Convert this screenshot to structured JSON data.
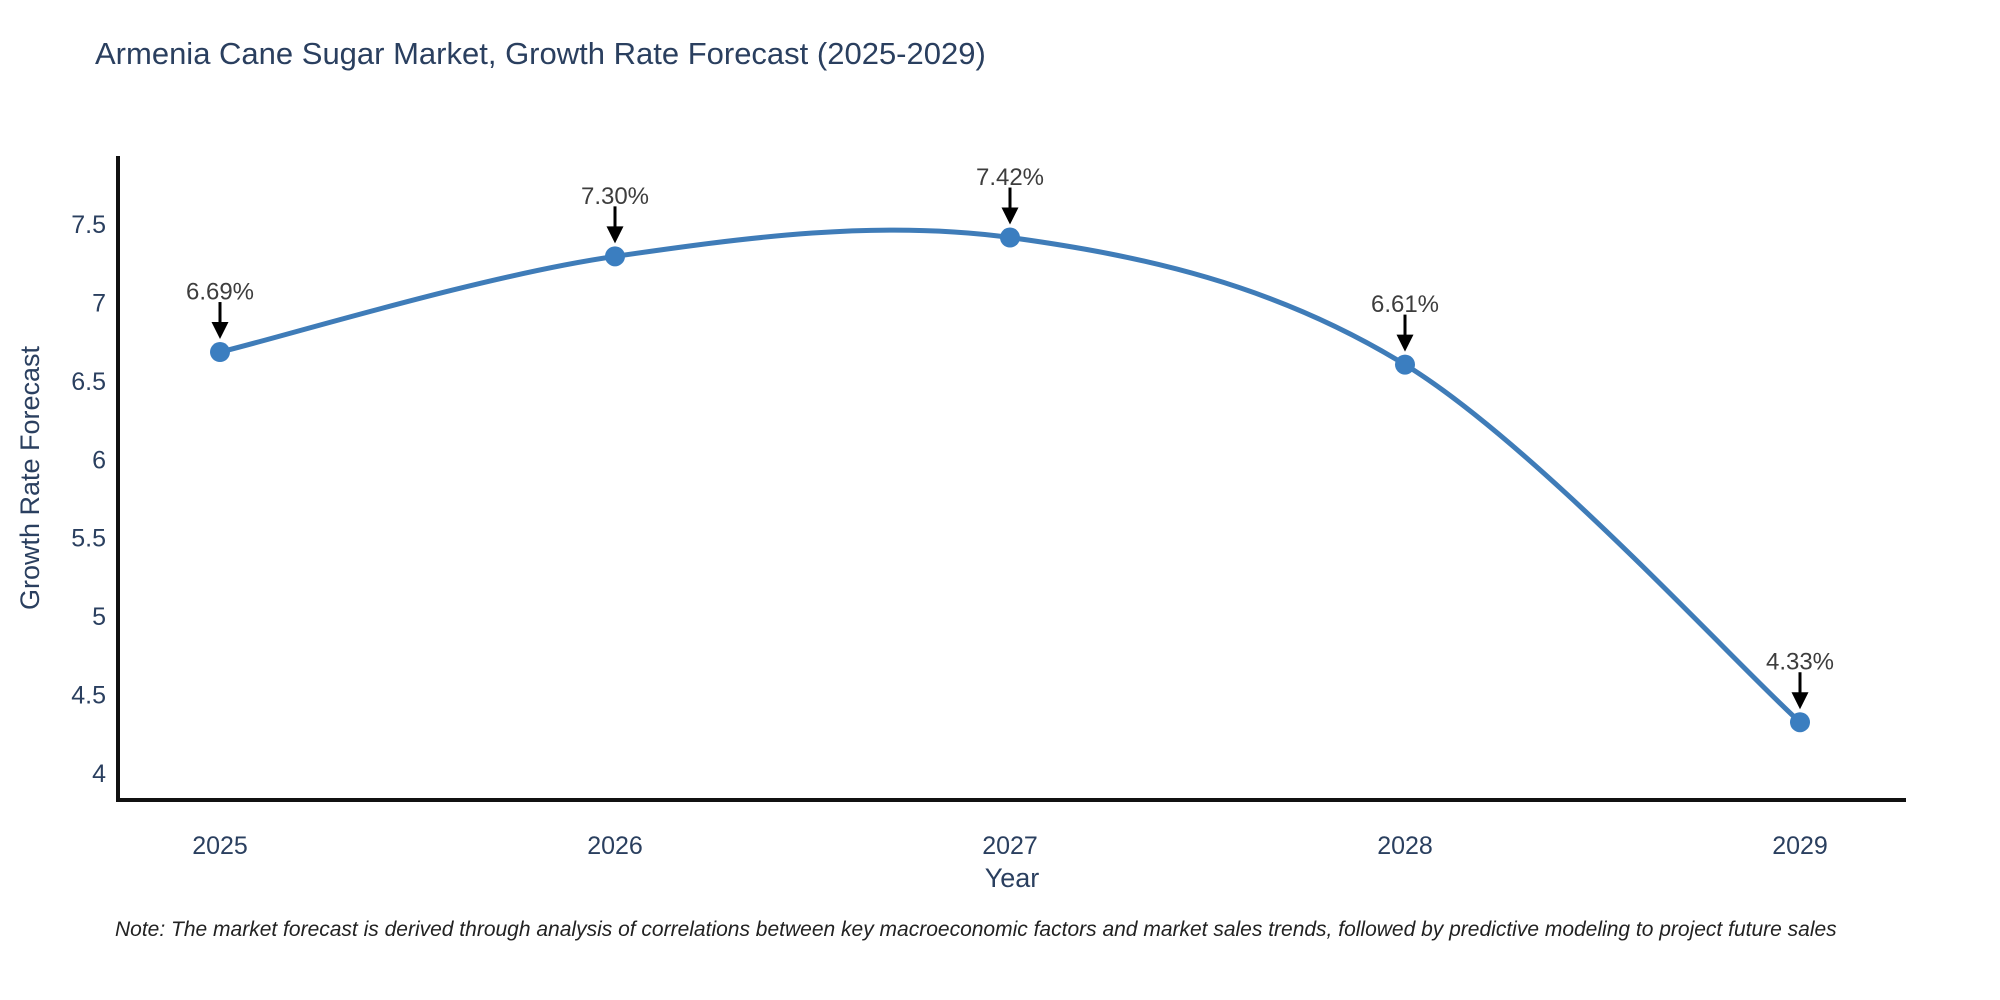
{
  "chart_data": {
    "type": "line",
    "title": "Armenia Cane Sugar Market, Growth Rate Forecast (2025-2029)",
    "xlabel": "Year",
    "ylabel": "Growth Rate Forecast",
    "categories": [
      2025,
      2026,
      2027,
      2028,
      2029
    ],
    "values": [
      6.69,
      7.3,
      7.42,
      6.61,
      4.33
    ],
    "point_labels": [
      "6.69%",
      "7.30%",
      "7.42%",
      "6.61%",
      "4.33%"
    ],
    "ytick_values": [
      4,
      4.5,
      5,
      5.5,
      6,
      6.5,
      7,
      7.5
    ],
    "ylim": [
      3.8,
      7.95
    ],
    "grid": false,
    "legend_position": "none",
    "line_shape": "spline",
    "line_color": "#3f7cb8",
    "marker_color": "#3b7ec0",
    "arrow_color": "#000000",
    "axis_color": "#111111",
    "title_color": "#2a3f5f",
    "annotation_color": "#3d3d3d"
  },
  "footnote": "Note: The market forecast is derived through analysis of correlations between key macroeconomic factors and market sales trends, followed by predictive modeling to project future sales"
}
